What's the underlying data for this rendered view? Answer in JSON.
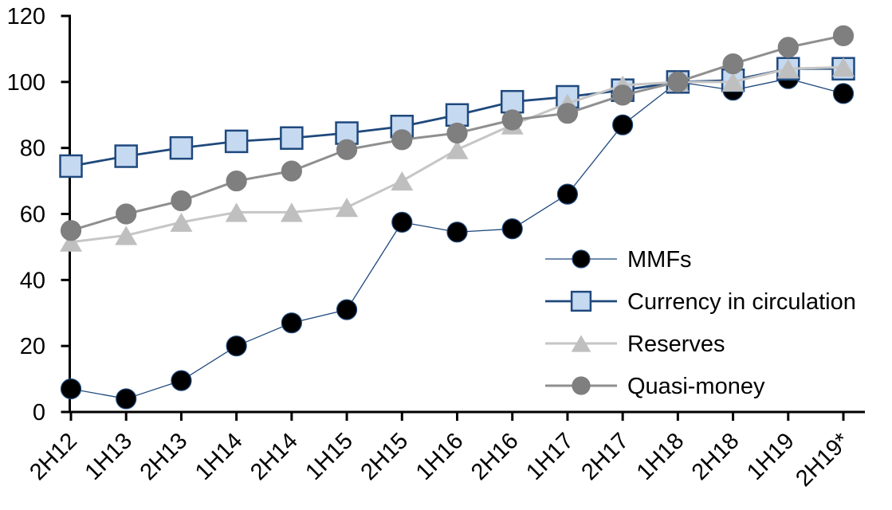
{
  "chart_data": {
    "type": "line",
    "title": "",
    "xlabel": "",
    "ylabel": "",
    "categories": [
      "2H12",
      "1H13",
      "2H13",
      "1H14",
      "2H14",
      "1H15",
      "2H15",
      "1H16",
      "2H16",
      "1H17",
      "2H17",
      "1H18",
      "2H18",
      "1H19",
      "2H19*"
    ],
    "series": [
      {
        "name": "MMFs",
        "marker": "circle",
        "marker_fill": "#000000",
        "marker_stroke": "#1f497d",
        "line_color": "#1f497d",
        "line_width": 1.3,
        "values": [
          7,
          4,
          9.5,
          20,
          27,
          31,
          57.5,
          54.5,
          55.5,
          66,
          87,
          100,
          97.5,
          101,
          96.5
        ]
      },
      {
        "name": "Currency in circulation",
        "marker": "square",
        "marker_fill": "#c5d9f1",
        "marker_stroke": "#1f497d",
        "line_color": "#1f497d",
        "line_width": 2.8,
        "values": [
          74.5,
          77.5,
          80,
          82,
          83,
          84.5,
          86.5,
          90,
          94,
          95.5,
          97.5,
          100,
          100.5,
          104,
          104
        ]
      },
      {
        "name": "Reserves",
        "marker": "triangle",
        "marker_fill": "#bfbfbf",
        "marker_stroke": "#bfbfbf",
        "line_color": "#c6c6c6",
        "line_width": 3,
        "values": [
          51.5,
          53.5,
          57.5,
          60.5,
          60.5,
          62,
          70,
          79.5,
          87,
          93.5,
          99,
          100,
          100,
          104,
          104.5
        ]
      },
      {
        "name": "Quasi-money",
        "marker": "circle",
        "marker_fill": "#7f7f7f",
        "marker_stroke": "#7f7f7f",
        "line_color": "#8f8f8f",
        "line_width": 3,
        "values": [
          55,
          60,
          64,
          70,
          73,
          79.5,
          82.5,
          84.5,
          88.5,
          90.5,
          96,
          100,
          105.5,
          110.5,
          114
        ]
      }
    ],
    "ylim": [
      0,
      120
    ],
    "yticks": [
      0,
      20,
      40,
      60,
      80,
      100,
      120
    ],
    "grid": false,
    "legend_position": "inside-right",
    "axis_color": "#000000",
    "background": "#ffffff"
  }
}
